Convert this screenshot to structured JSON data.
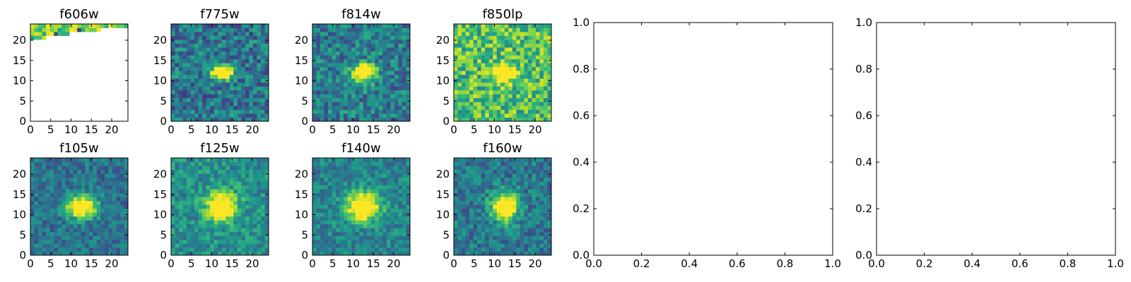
{
  "chart_data": [
    {
      "type": "heatmap",
      "title": "f606w",
      "xlim": [
        0,
        24
      ],
      "ylim": [
        0,
        24
      ],
      "xticks": [
        "0",
        "5",
        "10",
        "15",
        "20"
      ],
      "yticks": [
        "0",
        "5",
        "10",
        "15",
        "20"
      ],
      "grid": "25x25",
      "colormap": "viridis",
      "note_values": "masked below row 21"
    },
    {
      "type": "heatmap",
      "title": "f775w",
      "xlim": [
        0,
        24
      ],
      "ylim": [
        0,
        24
      ],
      "xticks": [
        "0",
        "5",
        "10",
        "15",
        "20"
      ],
      "yticks": [
        "0",
        "5",
        "10",
        "15",
        "20"
      ],
      "grid": "25x25",
      "colormap": "viridis",
      "peak": {
        "x": 12,
        "y": 12
      }
    },
    {
      "type": "heatmap",
      "title": "f814w",
      "xlim": [
        0,
        24
      ],
      "ylim": [
        0,
        24
      ],
      "xticks": [
        "0",
        "5",
        "10",
        "15",
        "20"
      ],
      "yticks": [
        "0",
        "5",
        "10",
        "15",
        "20"
      ],
      "grid": "25x25",
      "colormap": "viridis",
      "peak": {
        "x": 12,
        "y": 12
      }
    },
    {
      "type": "heatmap",
      "title": "f850lp",
      "xlim": [
        0,
        24
      ],
      "ylim": [
        0,
        24
      ],
      "xticks": [
        "0",
        "5",
        "10",
        "15",
        "20"
      ],
      "yticks": [
        "0",
        "5",
        "10",
        "15",
        "20"
      ],
      "grid": "25x25",
      "colormap": "viridis",
      "peak": {
        "x": 12,
        "y": 12
      }
    },
    {
      "type": "heatmap",
      "title": "f105w",
      "xlim": [
        0,
        24
      ],
      "ylim": [
        0,
        24
      ],
      "xticks": [
        "0",
        "5",
        "10",
        "15",
        "20"
      ],
      "yticks": [
        "0",
        "5",
        "10",
        "15",
        "20"
      ],
      "grid": "25x25",
      "colormap": "viridis",
      "peak": {
        "x": 12,
        "y": 12
      }
    },
    {
      "type": "heatmap",
      "title": "f125w",
      "xlim": [
        0,
        24
      ],
      "ylim": [
        0,
        24
      ],
      "xticks": [
        "0",
        "5",
        "10",
        "15",
        "20"
      ],
      "yticks": [
        "0",
        "5",
        "10",
        "15",
        "20"
      ],
      "grid": "25x25",
      "colormap": "viridis",
      "peak": {
        "x": 12,
        "y": 12
      }
    },
    {
      "type": "heatmap",
      "title": "f140w",
      "xlim": [
        0,
        24
      ],
      "ylim": [
        0,
        24
      ],
      "xticks": [
        "0",
        "5",
        "10",
        "15",
        "20"
      ],
      "yticks": [
        "0",
        "5",
        "10",
        "15",
        "20"
      ],
      "grid": "25x25",
      "colormap": "viridis",
      "peak": {
        "x": 12,
        "y": 12
      }
    },
    {
      "type": "heatmap",
      "title": "f160w",
      "xlim": [
        0,
        24
      ],
      "ylim": [
        0,
        24
      ],
      "xticks": [
        "0",
        "5",
        "10",
        "15",
        "20"
      ],
      "yticks": [
        "0",
        "5",
        "10",
        "15",
        "20"
      ],
      "grid": "25x25",
      "colormap": "viridis",
      "peak": {
        "x": 12,
        "y": 12
      }
    },
    {
      "type": "line",
      "title": "",
      "xlim": [
        0,
        1
      ],
      "ylim": [
        0,
        1
      ],
      "xticks": [
        "0.0",
        "0.2",
        "0.4",
        "0.6",
        "0.8",
        "1.0"
      ],
      "yticks": [
        "0.0",
        "0.2",
        "0.4",
        "0.6",
        "0.8",
        "1.0"
      ],
      "series": []
    },
    {
      "type": "line",
      "title": "",
      "xlim": [
        0,
        1
      ],
      "ylim": [
        0,
        1
      ],
      "xticks": [
        "0.0",
        "0.2",
        "0.4",
        "0.6",
        "0.8",
        "1.0"
      ],
      "yticks": [
        "0.0",
        "0.2",
        "0.4",
        "0.6",
        "0.8",
        "1.0"
      ],
      "series": []
    }
  ],
  "colors": {
    "viridis_low": "#440154",
    "viridis_mid": "#21918c",
    "viridis_high": "#fde725",
    "axes": "#000000",
    "background": "#ffffff"
  }
}
